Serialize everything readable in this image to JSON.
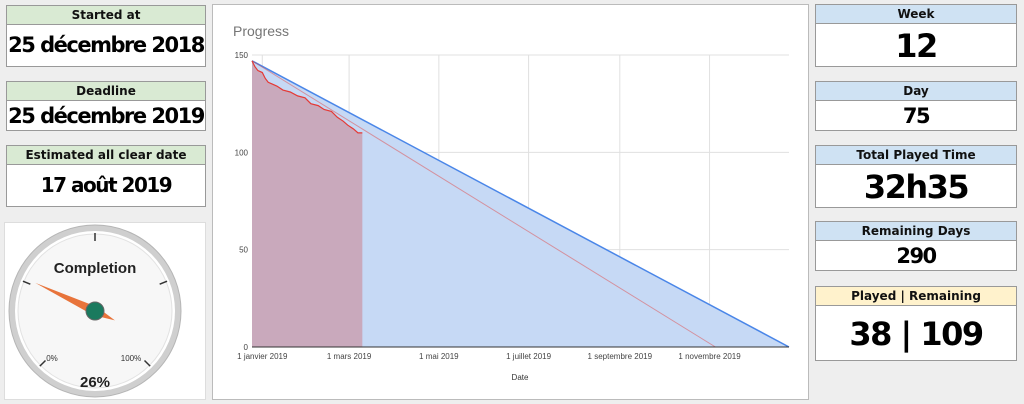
{
  "left": {
    "started": {
      "label": "Started at",
      "value": "25 décembre 2018"
    },
    "deadline": {
      "label": "Deadline",
      "value": "25 décembre 2019"
    },
    "estimated": {
      "label": "Estimated all clear date",
      "value": "17 août 2019"
    }
  },
  "gauge": {
    "label": "Completion",
    "value_text": "26%",
    "min_label": "0%",
    "max_label": "100%",
    "value": 0.26,
    "needle_color": "#e8743b",
    "hub_color": "#1a7a5e"
  },
  "right": {
    "week": {
      "label": "Week",
      "value": "12"
    },
    "day": {
      "label": "Day",
      "value": "75"
    },
    "total_played": {
      "label": "Total Played Time",
      "value": "32h35"
    },
    "remaining_days": {
      "label": "Remaining Days",
      "value": "290"
    },
    "played_remaining": {
      "label": "Played | Remaining",
      "value": "38 | 109"
    }
  },
  "colors": {
    "green_header": "#d9ead3",
    "blue_header": "#cfe2f3",
    "yellow_header": "#fff2cc",
    "target_fill": "#c6d9f5",
    "target_line": "#4a86e8",
    "actual_fill": "#c9a9bc",
    "actual_line": "#e53935"
  },
  "chart_data": {
    "type": "area",
    "title": "Progress",
    "xlabel": "Date",
    "ylabel": "",
    "x_range": [
      "2018-12-25",
      "2019-12-25"
    ],
    "ylim": [
      0,
      150
    ],
    "y_ticks": [
      0,
      50,
      100,
      150
    ],
    "x_ticks": [
      {
        "date": "2019-01-01",
        "label": "1 janvier 2019"
      },
      {
        "date": "2019-03-01",
        "label": "1 mars 2019"
      },
      {
        "date": "2019-05-01",
        "label": "1 mai 2019"
      },
      {
        "date": "2019-07-01",
        "label": "1 juillet 2019"
      },
      {
        "date": "2019-09-01",
        "label": "1 septembre 2019"
      },
      {
        "date": "2019-11-01",
        "label": "1 novembre 2019"
      }
    ],
    "grid": true,
    "series": [
      {
        "name": "",
        "kind": "area",
        "points": [
          [
            "2018-12-25",
            147
          ],
          [
            "2019-12-25",
            0
          ]
        ]
      },
      {
        "name": "",
        "kind": "area-step",
        "points": [
          [
            "2018-12-25",
            147
          ],
          [
            "2018-12-27",
            144
          ],
          [
            "2018-12-29",
            142
          ],
          [
            "2019-01-01",
            141
          ],
          [
            "2019-01-03",
            138
          ],
          [
            "2019-01-05",
            136
          ],
          [
            "2019-01-08",
            135
          ],
          [
            "2019-01-11",
            134
          ],
          [
            "2019-01-15",
            132
          ],
          [
            "2019-01-20",
            131
          ],
          [
            "2019-01-25",
            129
          ],
          [
            "2019-01-30",
            128
          ],
          [
            "2019-02-03",
            125
          ],
          [
            "2019-02-08",
            124
          ],
          [
            "2019-02-12",
            122
          ],
          [
            "2019-02-17",
            121
          ],
          [
            "2019-02-21",
            118
          ],
          [
            "2019-02-25",
            116
          ],
          [
            "2019-02-28",
            114
          ],
          [
            "2019-03-04",
            112
          ],
          [
            "2019-03-07",
            110
          ],
          [
            "2019-03-10",
            110
          ]
        ]
      },
      {
        "name": "",
        "kind": "line",
        "points": [
          [
            "2018-12-25",
            147
          ],
          [
            "2019-11-05",
            0
          ]
        ]
      }
    ]
  }
}
